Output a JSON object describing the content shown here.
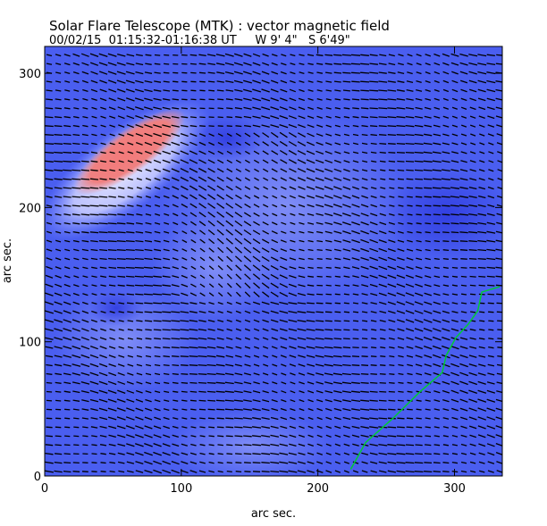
{
  "chart_data": {
    "type": "vector-map",
    "title": "Solar Flare Telescope (MTK) : vector magnetic field",
    "subtitle": "00/02/15  01:15:32-01:16:38 UT     W 9' 4\"   S 6'49\"",
    "xlabel": "arc sec.",
    "ylabel": "arc sec.",
    "xlim": [
      0,
      335
    ],
    "ylim": [
      0,
      320
    ],
    "xticks": [
      "0",
      "100",
      "200",
      "300"
    ],
    "yticks": [
      "0",
      "100",
      "200",
      "300"
    ],
    "xtick_values": [
      0,
      100,
      200,
      300
    ],
    "ytick_values": [
      0,
      100,
      200,
      300
    ],
    "colors": {
      "background": "#4a5ef0",
      "positive": "#f07a7a",
      "dark": "#3a46e0",
      "neutral_line": "#00cc33",
      "vectors": "#000000"
    },
    "vector_field": {
      "spacing_arcsec": 6.6,
      "typical_angle_deg": -12
    },
    "neutral_line": {
      "x": [
        224,
        235,
        255,
        275,
        291,
        294,
        301,
        310,
        317,
        320,
        333
      ],
      "y": [
        5,
        25,
        43,
        63,
        77,
        90,
        103,
        113,
        123,
        137,
        141
      ]
    }
  }
}
